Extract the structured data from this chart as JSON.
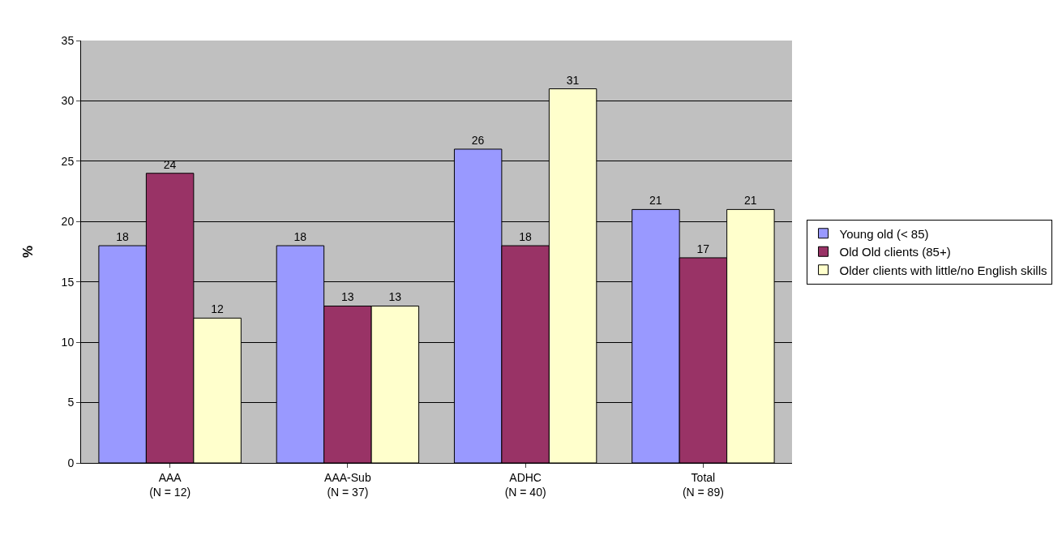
{
  "chart_data": {
    "type": "bar",
    "ylabel": "%",
    "categories": [
      "AAA\n(N = 12)",
      "AAA-Sub\n(N = 37)",
      "ADHC\n(N = 40)",
      "Total\n(N = 89)"
    ],
    "series": [
      {
        "name": "Young old (< 85)",
        "color": "#9999ff",
        "values": [
          18,
          18,
          26,
          21
        ]
      },
      {
        "name": "Old Old clients (85+)",
        "color": "#993366",
        "values": [
          24,
          13,
          18,
          17
        ]
      },
      {
        "name": "Older clients with little/no English skills",
        "color": "#ffffcc",
        "values": [
          12,
          13,
          31,
          21
        ]
      }
    ],
    "ylim": [
      0,
      35
    ],
    "yticks": [
      0,
      5,
      10,
      15,
      20,
      25,
      30,
      35
    ],
    "grid": "y",
    "legend": "right",
    "data_labels": true
  }
}
